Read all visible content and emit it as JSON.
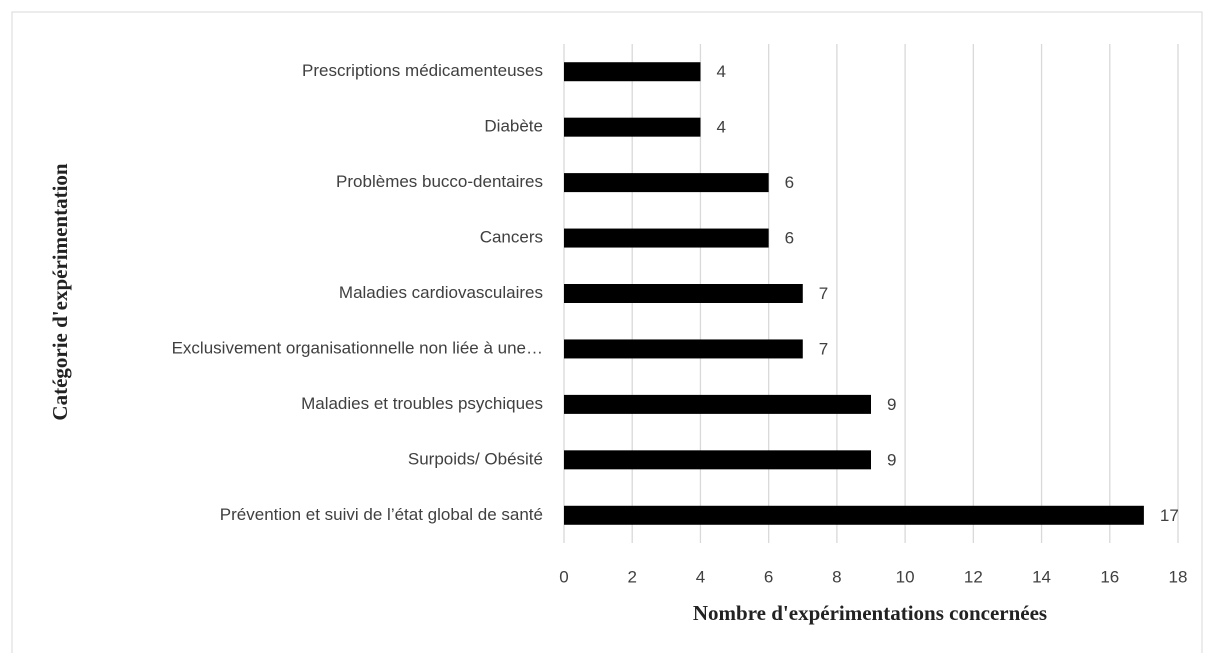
{
  "chart_data": {
    "type": "bar",
    "orientation": "horizontal",
    "x_label": "Nombre d'expérimentations concernées",
    "y_label": "Catégorie d'expérimentation",
    "categories": [
      "Prescriptions médicamenteuses",
      "Diabète",
      "Problèmes bucco-dentaires",
      "Cancers",
      "Maladies cardiovasculaires",
      "Exclusivement organisationnelle non liée à une…",
      "Maladies et troubles psychiques",
      "Surpoids/ Obésité",
      "Prévention et suivi de l’état global de santé"
    ],
    "values": [
      4,
      4,
      6,
      6,
      7,
      7,
      9,
      9,
      17
    ],
    "color": "#000000",
    "xlim": [
      0,
      18
    ],
    "xticks": [
      0,
      2,
      4,
      6,
      8,
      10,
      12,
      14,
      16,
      18
    ],
    "grid": true
  }
}
